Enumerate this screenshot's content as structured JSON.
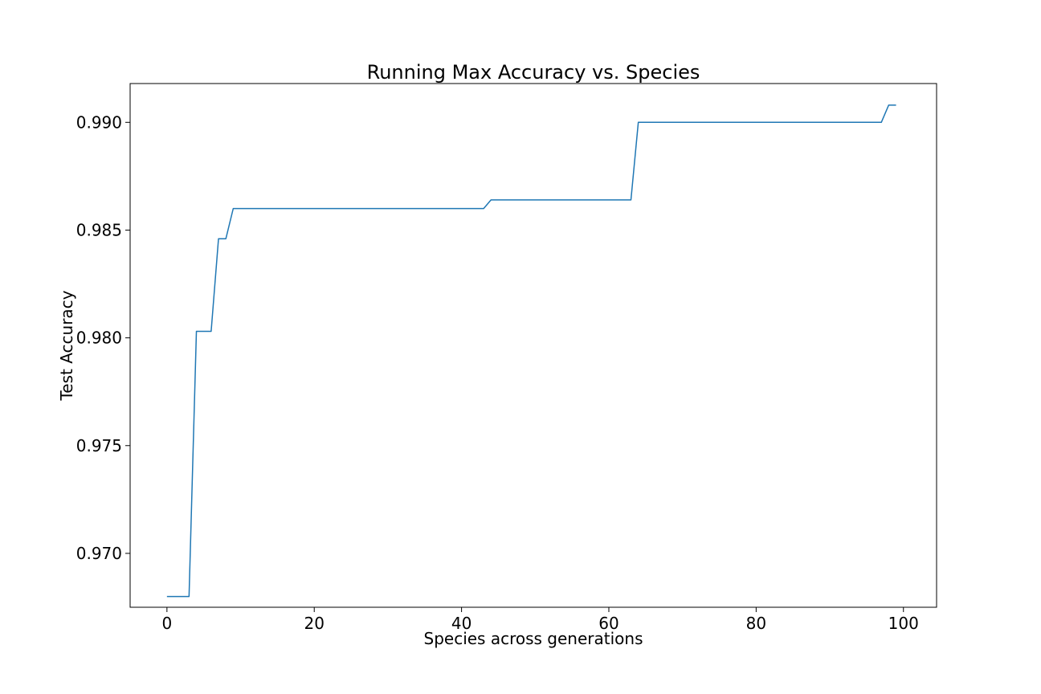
{
  "chart_data": {
    "type": "line",
    "title": "Running Max Accuracy vs. Species",
    "xlabel": "Species across generations",
    "ylabel": "Test Accuracy",
    "xlim": [
      -5,
      104.5
    ],
    "ylim": [
      0.9675,
      0.9918
    ],
    "xticks": [
      0,
      20,
      40,
      60,
      80,
      100
    ],
    "xtick_labels": [
      "0",
      "20",
      "40",
      "60",
      "80",
      "100"
    ],
    "yticks": [
      0.97,
      0.975,
      0.98,
      0.985,
      0.99
    ],
    "ytick_labels": [
      "0.970",
      "0.975",
      "0.980",
      "0.985",
      "0.990"
    ],
    "grid": false,
    "series": [
      {
        "name": "running max",
        "color": "#1f77b4",
        "x": [
          0,
          3,
          4,
          6,
          7,
          8,
          9,
          43,
          44,
          63,
          64,
          97,
          98,
          99
        ],
        "y": [
          0.968,
          0.968,
          0.9803,
          0.9803,
          0.9846,
          0.9846,
          0.986,
          0.986,
          0.9864,
          0.9864,
          0.99,
          0.99,
          0.9908,
          0.9908
        ]
      }
    ]
  }
}
